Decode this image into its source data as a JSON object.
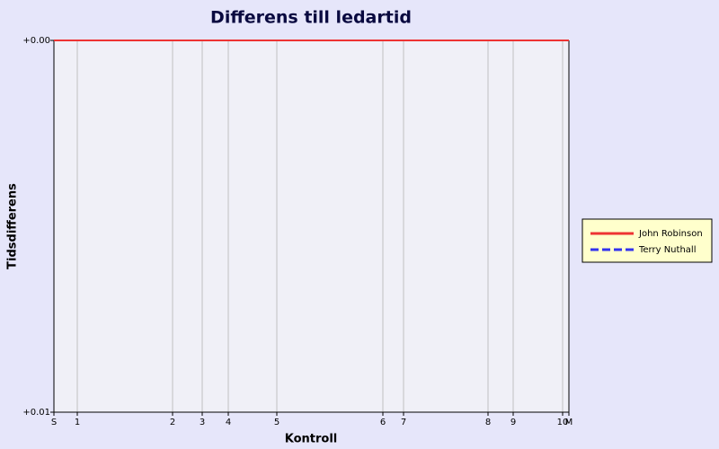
{
  "chart_data": {
    "type": "line",
    "title": "Differens till ledartid",
    "xlabel": "Kontroll",
    "ylabel": "Tidsdifferens",
    "x": [
      0,
      26,
      132,
      165,
      194,
      248,
      366,
      389,
      483,
      511,
      566,
      573
    ],
    "xlim": [
      0,
      573
    ],
    "xticks": [
      {
        "value": 0,
        "label": "S"
      },
      {
        "value": 26,
        "label": "1"
      },
      {
        "value": 132,
        "label": "2"
      },
      {
        "value": 165,
        "label": "3"
      },
      {
        "value": 194,
        "label": "4"
      },
      {
        "value": 248,
        "label": "5"
      },
      {
        "value": 366,
        "label": "6"
      },
      {
        "value": 389,
        "label": "7"
      },
      {
        "value": 483,
        "label": "8"
      },
      {
        "value": 511,
        "label": "9"
      },
      {
        "value": 566,
        "label": "10"
      },
      {
        "value": 573,
        "label": "M"
      }
    ],
    "ylim": [
      0,
      0.01
    ],
    "y_inverted": true,
    "yticks": [
      {
        "value": 0,
        "label": "+0.00"
      },
      {
        "value": 0.01,
        "label": "+0.01"
      }
    ],
    "grid": true,
    "legend": "right",
    "series": [
      {
        "name": "John Robinson",
        "color": "#ee3333",
        "dashed": false,
        "values": [
          0,
          0,
          0,
          0,
          0,
          0,
          0,
          0,
          0,
          0,
          0,
          0
        ]
      },
      {
        "name": "Terry Nuthall",
        "color": "#3333ee",
        "dashed": true,
        "values": [
          0,
          0,
          0,
          0,
          0,
          0,
          0,
          0,
          0,
          0,
          0,
          0
        ]
      }
    ]
  }
}
